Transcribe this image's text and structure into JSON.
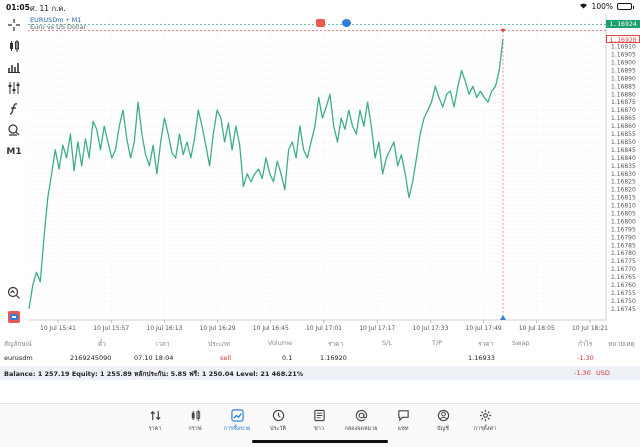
{
  "status_bar": {
    "time": "01:05",
    "date": "ศ. 11 ก.ค.",
    "battery": "100%",
    "battery_level": 1.0
  },
  "chart": {
    "symbol": "EURUSDm • M1",
    "description": "Euro vs US Dollar",
    "bid_label": "1.16924",
    "ask_label": "1.16920",
    "bid_color": "#1f9e6e",
    "ask_color": "#d94848",
    "line_color": "#3fae86"
  },
  "chart_data": {
    "type": "line",
    "title": "",
    "xlabel": "",
    "ylabel": "",
    "ylim": [
      1.16738,
      1.16928
    ],
    "grid": true,
    "x_ticks": [
      "10 Jul 15:41",
      "10 Jul 15:57",
      "10 Jul 16:13",
      "10 Jul 16:29",
      "10 Jul 16:45",
      "10 Jul 17:01",
      "10 Jul 17:17",
      "10 Jul 17:33",
      "10 Jul 17:49",
      "10 Jul 18:05",
      "10 Jul 18:21"
    ],
    "y_ticks": [
      "1.16910",
      "1.16905",
      "1.16900",
      "1.16895",
      "1.16890",
      "1.16885",
      "1.16880",
      "1.16875",
      "1.16870",
      "1.16865",
      "1.16860",
      "1.16855",
      "1.16850",
      "1.16845",
      "1.16840",
      "1.16835",
      "1.16830",
      "1.16825",
      "1.16820",
      "1.16815",
      "1.16810",
      "1.16805",
      "1.16800",
      "1.16795",
      "1.16790",
      "1.16785",
      "1.16780",
      "1.16775",
      "1.16770",
      "1.16765",
      "1.16760",
      "1.16755",
      "1.16750",
      "1.16745"
    ],
    "series": [
      {
        "values": [
          1.16745,
          1.1676,
          1.16768,
          1.16762,
          1.1679,
          1.16815,
          1.1683,
          1.16845,
          1.16833,
          1.16848,
          1.1684,
          1.16855,
          1.16832,
          1.1685,
          1.16835,
          1.16852,
          1.1684,
          1.16863,
          1.16858,
          1.16845,
          1.1686,
          1.1685,
          1.1684,
          1.16845,
          1.1686,
          1.1687,
          1.16852,
          1.1684,
          1.1685,
          1.16875,
          1.16855,
          1.16842,
          1.16835,
          1.16848,
          1.1683,
          1.1685,
          1.16865,
          1.16855,
          1.16843,
          1.1684,
          1.16855,
          1.16842,
          1.1685,
          1.1684,
          1.16852,
          1.1687,
          1.1686,
          1.16848,
          1.16835,
          1.16855,
          1.1687,
          1.16865,
          1.1685,
          1.16862,
          1.16845,
          1.1686,
          1.16848,
          1.16822,
          1.1683,
          1.16825,
          1.1683,
          1.16833,
          1.16827,
          1.1684,
          1.1683,
          1.16825,
          1.16838,
          1.1683,
          1.1682,
          1.16845,
          1.1685,
          1.1684,
          1.1686,
          1.16845,
          1.1684,
          1.1685,
          1.1686,
          1.16878,
          1.16865,
          1.16872,
          1.1688,
          1.1686,
          1.1685,
          1.16865,
          1.16858,
          1.1687,
          1.1686,
          1.16855,
          1.1687,
          1.1686,
          1.16875,
          1.1686,
          1.1684,
          1.1685,
          1.1683,
          1.1684,
          1.16845,
          1.1685,
          1.16835,
          1.16842,
          1.1683,
          1.16815,
          1.16825,
          1.1684,
          1.16855,
          1.16865,
          1.1687,
          1.16875,
          1.16885,
          1.16878,
          1.16872,
          1.1688,
          1.16882,
          1.16872,
          1.16885,
          1.16895,
          1.16888,
          1.1688,
          1.16885,
          1.16878,
          1.16882,
          1.16878,
          1.16875,
          1.16882,
          1.16885,
          1.16895,
          1.16915
        ]
      }
    ]
  },
  "toolbar": {
    "m1_label": "M1"
  },
  "trades": {
    "headers": [
      "สัญลักษณ์",
      "ตั๋ว",
      "เวลา",
      "ประเภท",
      "Volume",
      "ราคา",
      "S/L",
      "T/P",
      "ราคา",
      "Swap",
      "กำไร",
      "หมายเหตุ"
    ],
    "row": {
      "symbol": "eurusdm",
      "ticket": "2169245090",
      "time": "07.10 18:04",
      "type": "sell",
      "volume": "0.1",
      "open_price": "1.16920",
      "sl": "",
      "tp": "",
      "current_price": "1.16933",
      "swap": "",
      "profit": "-1.30",
      "comment": ""
    },
    "balance_line": "Balance: 1 257.19 Equity: 1 255.89 หลักประกัน: 5.85 ฟรี: 1 250.04 Level: 21 468.21%",
    "total_profit": "-1.30",
    "currency": "USD"
  },
  "tabs": [
    {
      "label": "ราคา",
      "icon": "arrows-updown-icon"
    },
    {
      "label": "กราฟ",
      "icon": "candles-icon"
    },
    {
      "label": "การซื้อขาย",
      "icon": "trade-chart-icon"
    },
    {
      "label": "ประวัติ",
      "icon": "history-icon"
    },
    {
      "label": "ข่าว",
      "icon": "news-icon"
    },
    {
      "label": "กล่องจดหมาย",
      "icon": "mailbox-icon"
    },
    {
      "label": "แชท",
      "icon": "chat-icon"
    },
    {
      "label": "บัญชี",
      "icon": "account-icon"
    },
    {
      "label": "การตั้งค่า",
      "icon": "settings-icon"
    }
  ],
  "colors": {
    "accent": "#1e78d4",
    "loss": "#d0343c",
    "sell": "#d0343c"
  }
}
